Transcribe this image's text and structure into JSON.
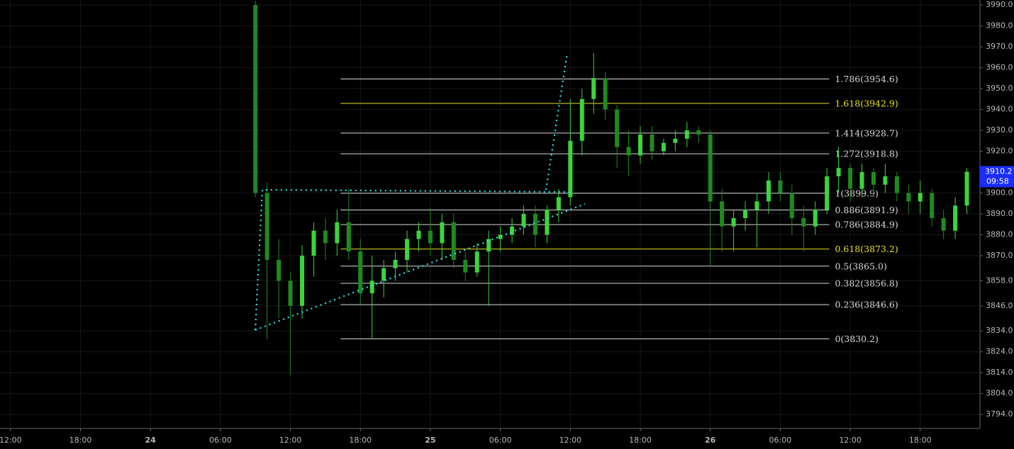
{
  "chart_data": {
    "type": "candlestick",
    "up_color": "#3cd43c",
    "down_color": "#1f8a1f",
    "grid": true,
    "xlim": [
      -0.9,
      83
    ],
    "ylim": [
      3787.3,
      3992.4
    ],
    "xticks": [
      {
        "value": 0,
        "label": "12:00"
      },
      {
        "value": 6,
        "label": "18:00"
      },
      {
        "value": 12,
        "label": "24"
      },
      {
        "value": 18,
        "label": "06:00"
      },
      {
        "value": 24,
        "label": "12:00"
      },
      {
        "value": 30,
        "label": "18:00"
      },
      {
        "value": 36,
        "label": "25"
      },
      {
        "value": 42,
        "label": "06:00"
      },
      {
        "value": 48,
        "label": "12:00"
      },
      {
        "value": 54,
        "label": "18:00"
      },
      {
        "value": 60,
        "label": "26"
      },
      {
        "value": 66,
        "label": "06:00"
      },
      {
        "value": 72,
        "label": "12:00"
      },
      {
        "value": 78,
        "label": "18:00"
      }
    ],
    "yticks": [
      {
        "value": 3990,
        "label": "3990.0"
      },
      {
        "value": 3980,
        "label": "3980.0"
      },
      {
        "value": 3970,
        "label": "3970.0"
      },
      {
        "value": 3960,
        "label": "3960.0"
      },
      {
        "value": 3950,
        "label": "3950.0"
      },
      {
        "value": 3940,
        "label": "3940.0"
      },
      {
        "value": 3930,
        "label": "3930.0"
      },
      {
        "value": 3920,
        "label": "3920.0"
      },
      {
        "value": 3910,
        "label": "3910.0"
      },
      {
        "value": 3900,
        "label": "3900.0"
      },
      {
        "value": 3890,
        "label": "3890.0"
      },
      {
        "value": 3880,
        "label": "3880.0"
      },
      {
        "value": 3870,
        "label": "3870.0"
      },
      {
        "value": 3858,
        "label": "3858.0"
      },
      {
        "value": 3846,
        "label": "3846.0"
      },
      {
        "value": 3834,
        "label": "3834.0"
      },
      {
        "value": 3824,
        "label": "3824.0"
      },
      {
        "value": 3814,
        "label": "3814.0"
      },
      {
        "value": 3804,
        "label": "3804.0"
      },
      {
        "value": 3794,
        "label": "3794.0"
      }
    ],
    "x": [
      21,
      22,
      23,
      24,
      25,
      26,
      27,
      28,
      29,
      30,
      31,
      32,
      33,
      34,
      35,
      36,
      37,
      38,
      39,
      40,
      41,
      42,
      43,
      44,
      45,
      46,
      47,
      48,
      49,
      50,
      51,
      52,
      53,
      54,
      55,
      56,
      57,
      58,
      59,
      60,
      61,
      62,
      63,
      64,
      65,
      66,
      67,
      68,
      69,
      70,
      71,
      72,
      73,
      74,
      75,
      76,
      77,
      78,
      79,
      80,
      81,
      82
    ],
    "open": [
      3990,
      3900,
      3868,
      3858,
      3846,
      3870,
      3882,
      3876,
      3886,
      3872,
      3852,
      3858,
      3864,
      3868,
      3878,
      3882,
      3876,
      3886,
      3868,
      3862,
      3872,
      3878,
      3880,
      3884,
      3890,
      3880,
      3892,
      3898,
      3925,
      3945,
      3955,
      3940,
      3922,
      3918,
      3928,
      3920,
      3924,
      3926,
      3930,
      3928,
      3896,
      3884,
      3888,
      3892,
      3896,
      3906,
      3900,
      3888,
      3884,
      3892,
      3908,
      3912,
      3902,
      3910,
      3904,
      3908,
      3900,
      3896,
      3900,
      3888,
      3882,
      3894
    ],
    "high": [
      3992,
      3905,
      3878,
      3862,
      3875,
      3886,
      3888,
      3892,
      3902,
      3878,
      3870,
      3868,
      3872,
      3882,
      3886,
      3893,
      3890,
      3890,
      3872,
      3876,
      3882,
      3884,
      3888,
      3894,
      3894,
      3894,
      3902,
      3945,
      3950,
      3967,
      3958,
      3942,
      3930,
      3932,
      3932,
      3926,
      3930,
      3934,
      3932,
      3930,
      3902,
      3892,
      3896,
      3900,
      3910,
      3910,
      3904,
      3894,
      3896,
      3912,
      3922,
      3914,
      3914,
      3912,
      3914,
      3910,
      3904,
      3906,
      3902,
      3892,
      3898,
      3912
    ],
    "low": [
      3898,
      3830,
      3840,
      3813,
      3840,
      3860,
      3868,
      3870,
      3868,
      3846,
      3830,
      3850,
      3858,
      3862,
      3872,
      3870,
      3868,
      3864,
      3858,
      3860,
      3846,
      3872,
      3876,
      3880,
      3874,
      3876,
      3886,
      3894,
      3918,
      3938,
      3935,
      3912,
      3908,
      3914,
      3916,
      3918,
      3920,
      3922,
      3924,
      3865,
      3872,
      3872,
      3882,
      3874,
      3890,
      3896,
      3880,
      3872,
      3880,
      3890,
      3900,
      3896,
      3898,
      3898,
      3900,
      3896,
      3890,
      3890,
      3884,
      3878,
      3878,
      3890
    ],
    "close": [
      3900,
      3868,
      3858,
      3846,
      3870,
      3882,
      3876,
      3886,
      3872,
      3852,
      3858,
      3864,
      3868,
      3878,
      3882,
      3876,
      3886,
      3868,
      3862,
      3872,
      3878,
      3880,
      3884,
      3890,
      3880,
      3892,
      3898,
      3925,
      3945,
      3955,
      3940,
      3922,
      3918,
      3928,
      3920,
      3924,
      3926,
      3930,
      3928,
      3896,
      3884,
      3888,
      3892,
      3896,
      3906,
      3900,
      3888,
      3884,
      3892,
      3908,
      3912,
      3902,
      3910,
      3904,
      3908,
      3900,
      3896,
      3900,
      3888,
      3882,
      3894,
      3910.2
    ],
    "fib": {
      "x": [
        28.3,
        70.2
      ],
      "levels": [
        {
          "value": 3954.6,
          "label": "1.786(3954.6)",
          "color": "#d8d8d8"
        },
        {
          "value": 3942.9,
          "label": "1.618(3942.9)",
          "color": "#e8e020"
        },
        {
          "value": 3928.7,
          "label": "1.414(3928.7)",
          "color": "#d8d8d8"
        },
        {
          "value": 3918.8,
          "label": "1.272(3918.8)",
          "color": "#d8d8d8"
        },
        {
          "value": 3899.9,
          "label": "1(3899.9)",
          "color": "#d8d8d8"
        },
        {
          "value": 3891.9,
          "label": "0.886(3891.9)",
          "color": "#d8d8d8"
        },
        {
          "value": 3884.9,
          "label": "0.786(3884.9)",
          "color": "#d8d8d8"
        },
        {
          "value": 3873.2,
          "label": "0.618(3873.2)",
          "color": "#e8e020"
        },
        {
          "value": 3865.0,
          "label": "0.5(3865.0)",
          "color": "#d8d8d8"
        },
        {
          "value": 3856.8,
          "label": "0.382(3856.8)",
          "color": "#d8d8d8"
        },
        {
          "value": 3846.6,
          "label": "0.236(3846.6)",
          "color": "#d8d8d8"
        },
        {
          "value": 3830.2,
          "label": "0(3830.2)",
          "color": "#d8d8d8"
        }
      ]
    },
    "last_price": {
      "value": 3910.2,
      "label": "3910.2",
      "color": "#1a2cff"
    },
    "countdown": "09:58"
  }
}
